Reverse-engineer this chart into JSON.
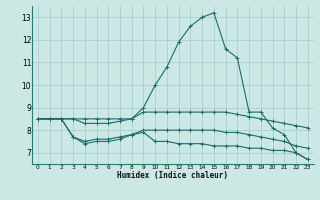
{
  "xlabel": "Humidex (Indice chaleur)",
  "background_color": "#cce8e4",
  "grid_color": "#aacfcc",
  "line_color": "#1a6b6b",
  "ylim": [
    6.5,
    13.5
  ],
  "xlim": [
    -0.5,
    23.5
  ],
  "yticks": [
    7,
    8,
    9,
    10,
    11,
    12,
    13
  ],
  "xticks": [
    0,
    1,
    2,
    3,
    4,
    5,
    6,
    7,
    8,
    9,
    10,
    11,
    12,
    13,
    14,
    15,
    16,
    17,
    18,
    19,
    20,
    21,
    22,
    23
  ],
  "x_labels": [
    "0",
    "1",
    "2",
    "3",
    "4",
    "5",
    "6",
    "7",
    "8",
    "9",
    "10",
    "11",
    "12",
    "13",
    "14",
    "15",
    "16",
    "17",
    "18",
    "19",
    "20",
    "21",
    "22",
    "23"
  ],
  "lines": [
    [
      8.5,
      8.5,
      8.5,
      8.5,
      8.5,
      8.5,
      8.5,
      8.5,
      8.5,
      9.0,
      10.0,
      10.8,
      11.9,
      12.6,
      13.0,
      13.2,
      11.6,
      11.2,
      8.8,
      8.8,
      8.1,
      7.8,
      7.0,
      6.7
    ],
    [
      8.5,
      8.5,
      8.5,
      8.5,
      8.3,
      8.3,
      8.3,
      8.4,
      8.5,
      8.8,
      8.8,
      8.8,
      8.8,
      8.8,
      8.8,
      8.8,
      8.8,
      8.7,
      8.6,
      8.5,
      8.4,
      8.3,
      8.2,
      8.1
    ],
    [
      8.5,
      8.5,
      8.5,
      7.7,
      7.5,
      7.6,
      7.6,
      7.7,
      7.8,
      8.0,
      8.0,
      8.0,
      8.0,
      8.0,
      8.0,
      8.0,
      7.9,
      7.9,
      7.8,
      7.7,
      7.6,
      7.5,
      7.3,
      7.2
    ],
    [
      8.5,
      8.5,
      8.5,
      7.7,
      7.4,
      7.5,
      7.5,
      7.6,
      7.8,
      7.9,
      7.5,
      7.5,
      7.4,
      7.4,
      7.4,
      7.3,
      7.3,
      7.3,
      7.2,
      7.2,
      7.1,
      7.1,
      7.0,
      6.7
    ]
  ]
}
